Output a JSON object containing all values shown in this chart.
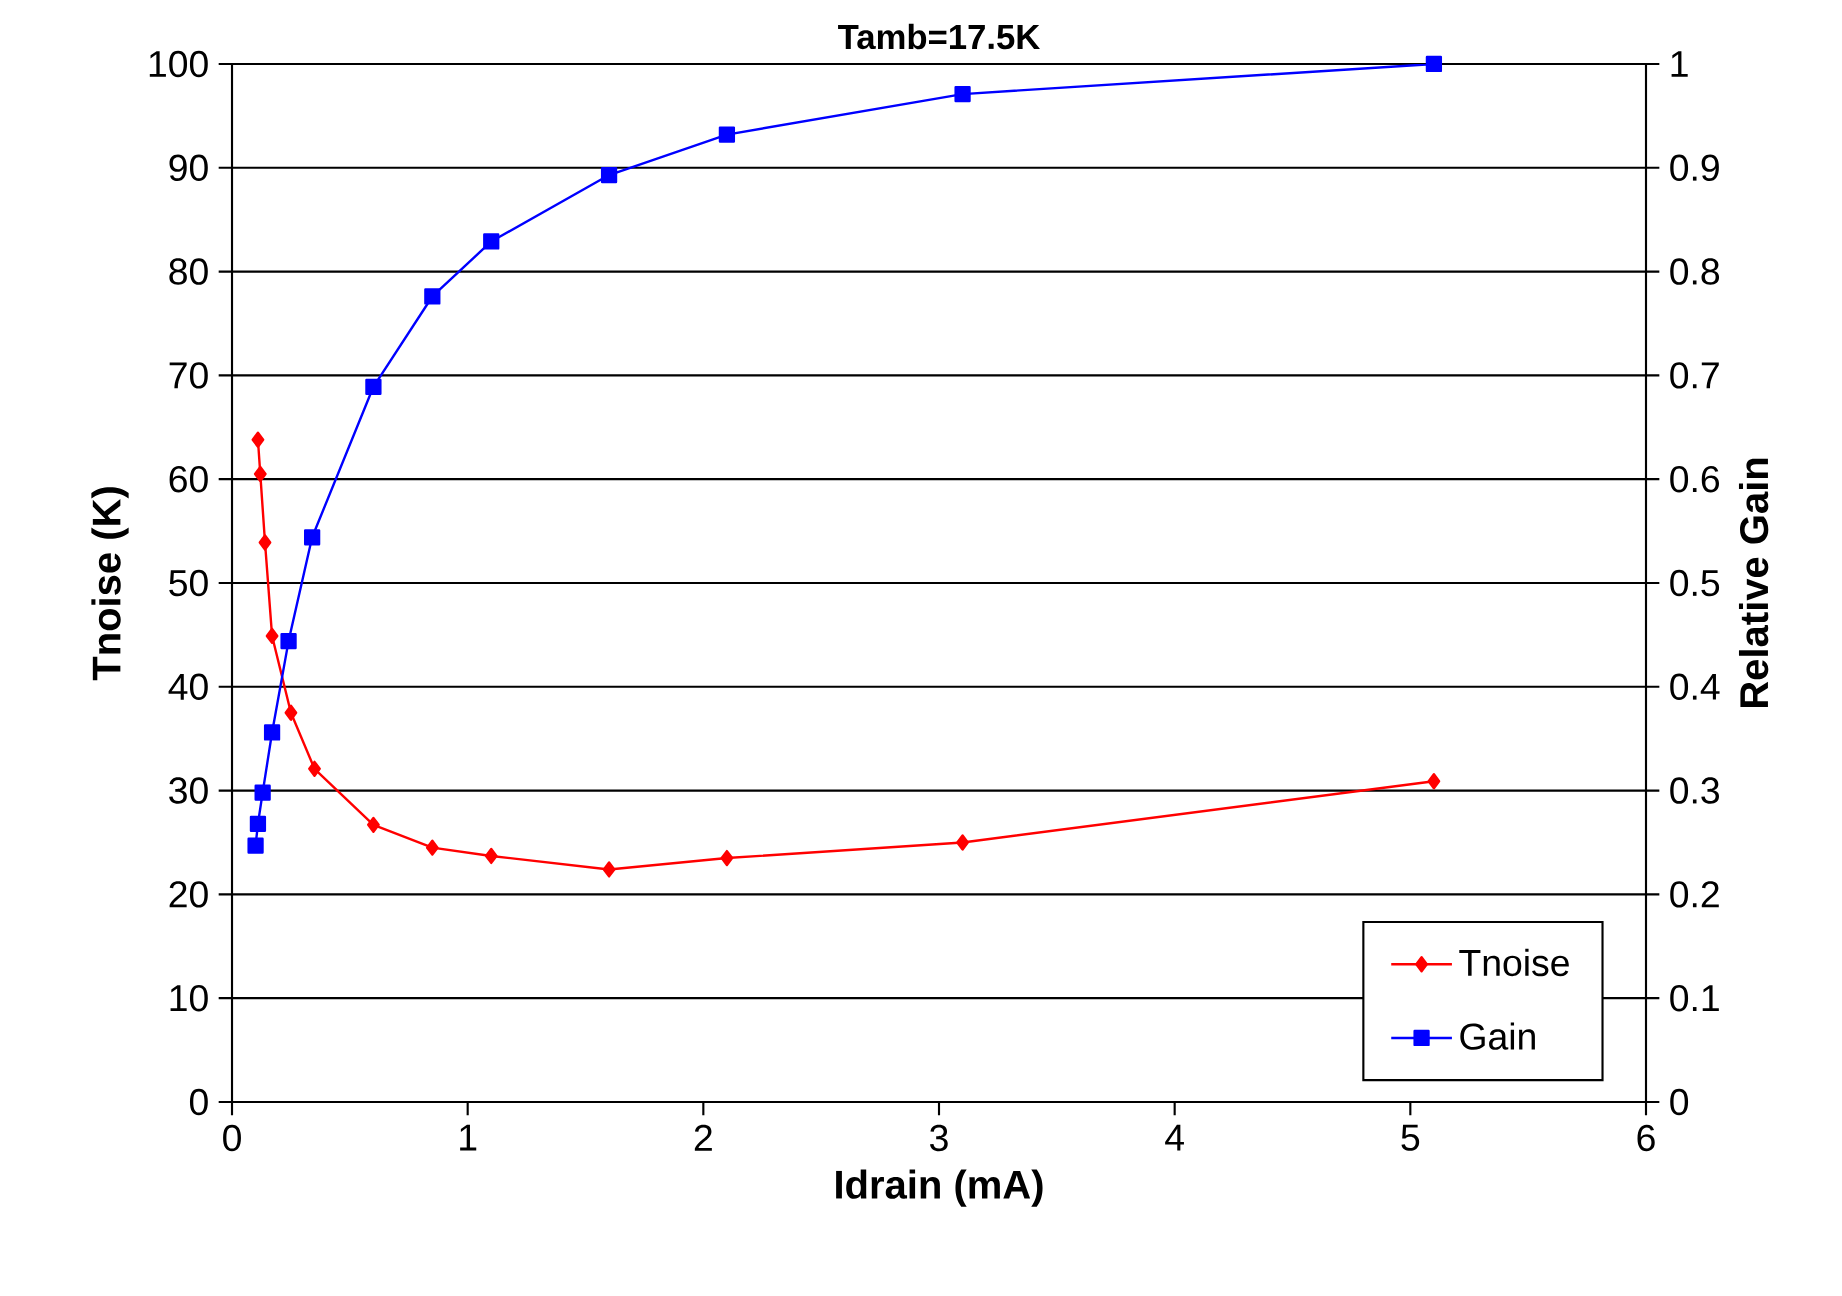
{
  "chart_data": {
    "type": "line",
    "title": "Tamb=17.5K",
    "xlabel": "Idrain (mA)",
    "ylabel": "Tnoise (K)",
    "y2label": "Relative Gain",
    "xlim": [
      0,
      6
    ],
    "xticks": [
      0,
      1,
      2,
      3,
      4,
      5,
      6
    ],
    "ylim": [
      0,
      100
    ],
    "yticks": [
      0,
      10,
      20,
      30,
      40,
      50,
      60,
      70,
      80,
      90,
      100
    ],
    "y2lim": [
      0,
      1
    ],
    "y2ticks": [
      0,
      0.1,
      0.2,
      0.3,
      0.4,
      0.5,
      0.6,
      0.7,
      0.8,
      0.9,
      1
    ],
    "grid": "y",
    "legend": "bottom right",
    "series": [
      {
        "name": "Tnoise",
        "color": "#ff0000",
        "marker": "diamond",
        "x": [
          0.11,
          0.12,
          0.14,
          0.17,
          0.25,
          0.35,
          0.6,
          0.85,
          1.1,
          1.6,
          2.1,
          3.1,
          5.1
        ],
        "values": [
          63.8,
          60.5,
          53.9,
          44.9,
          37.5,
          32.1,
          26.7,
          24.5,
          23.7,
          22.4,
          23.5,
          25.0,
          30.9
        ]
      },
      {
        "name": "Gain",
        "color": "#0000ff",
        "marker": "square",
        "axis": "y2",
        "x": [
          0.1,
          0.11,
          0.13,
          0.17,
          0.24,
          0.34,
          0.6,
          0.85,
          1.1,
          1.6,
          2.1,
          3.1,
          5.1
        ],
        "values": [
          0.247,
          0.268,
          0.298,
          0.356,
          0.444,
          0.544,
          0.689,
          0.776,
          0.829,
          0.893,
          0.932,
          0.971,
          1.0
        ]
      }
    ]
  }
}
